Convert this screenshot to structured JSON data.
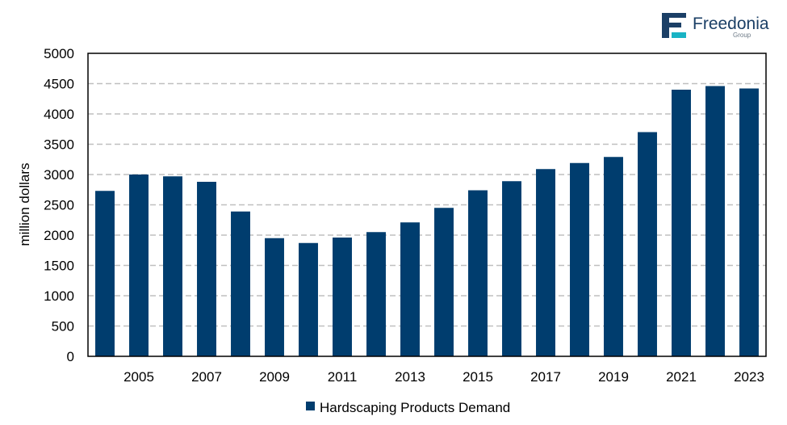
{
  "brand": {
    "name": "Freedonia",
    "sub": "Group",
    "colors": {
      "navy": "#1b3f66",
      "teal": "#19b3c4"
    }
  },
  "chart_data": {
    "type": "bar",
    "title": "",
    "xlabel": "",
    "ylabel": "million dollars",
    "ylim": [
      0,
      5000
    ],
    "yticks": [
      0,
      500,
      1000,
      1500,
      2000,
      2500,
      3000,
      3500,
      4000,
      4500,
      5000
    ],
    "grid": true,
    "legend_position": "bottom-center",
    "bar_color": "#003d6e",
    "categories": [
      2004,
      2005,
      2006,
      2007,
      2008,
      2009,
      2010,
      2011,
      2012,
      2013,
      2014,
      2015,
      2016,
      2017,
      2018,
      2019,
      2020,
      2021,
      2022,
      2023
    ],
    "xtick_labels": [
      "",
      "2005",
      "",
      "2007",
      "",
      "2009",
      "",
      "2011",
      "",
      "2013",
      "",
      "2015",
      "",
      "2017",
      "",
      "2019",
      "",
      "2021",
      "",
      "2023"
    ],
    "series": [
      {
        "name": "Hardscaping Products Demand",
        "values": [
          2730,
          3000,
          2970,
          2880,
          2390,
          1950,
          1870,
          1960,
          2050,
          2210,
          2450,
          2740,
          2890,
          3090,
          3190,
          3290,
          3700,
          4400,
          4460,
          4420
        ]
      }
    ]
  }
}
